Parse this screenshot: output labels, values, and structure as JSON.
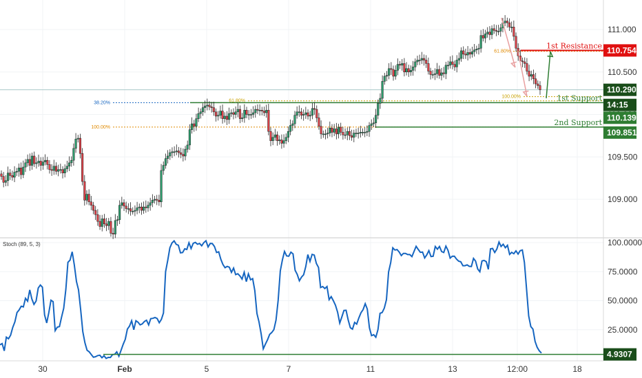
{
  "chart_data": [
    {
      "type": "candlestick",
      "price_axis": {
        "ticks": [
          "111.000",
          "110.500",
          "110.000",
          "109.500",
          "109.000"
        ],
        "ylim": [
          108.5,
          111.4
        ]
      },
      "time_axis": {
        "labels": [
          "30",
          "Feb",
          "5",
          "7",
          "11",
          "13",
          "12:00",
          "18"
        ]
      },
      "levels": {
        "first_resistance": {
          "label": "1st Resistance",
          "value": "110.754",
          "y": 110.754,
          "color": "#e01010"
        },
        "first_support": {
          "label": "1st Support",
          "value": "110.139",
          "y": 110.139,
          "color": "#2e7d32"
        },
        "second_support": {
          "label": "2nd Support",
          "value": "109.851",
          "y": 109.851,
          "color": "#2e7d32"
        },
        "current_price": {
          "value": "110.290",
          "y": 110.29,
          "color": "#1a4d1a"
        },
        "countdown": {
          "value": "14:15"
        }
      },
      "fibonacci": [
        {
          "label": "38.20%",
          "y": 110.139,
          "color": "#1565c0"
        },
        {
          "label": "100.00%",
          "y": 109.851,
          "color": "#e08a00"
        },
        {
          "label": "61.80%",
          "y": 110.16,
          "color": "#c9a100"
        },
        {
          "label": "61.80%",
          "y": 110.744,
          "color": "#e08a00"
        },
        {
          "label": "100.00%",
          "y": 110.21,
          "color": "#c9a100"
        }
      ],
      "candles_close": [
        109.27,
        109.2,
        109.22,
        109.31,
        109.28,
        109.26,
        109.32,
        109.33,
        109.37,
        109.29,
        109.38,
        109.43,
        109.47,
        109.4,
        109.51,
        109.42,
        109.43,
        109.45,
        109.4,
        109.44,
        109.46,
        109.41,
        109.35,
        109.34,
        109.39,
        109.33,
        109.35,
        109.35,
        109.31,
        109.36,
        109.39,
        109.43,
        109.46,
        109.6,
        109.71,
        109.72,
        109.54,
        109.21,
        108.99,
        109.06,
        108.97,
        108.93,
        108.87,
        108.82,
        108.74,
        108.68,
        108.77,
        108.71,
        108.69,
        108.74,
        108.6,
        108.59,
        108.75,
        108.76,
        108.93,
        108.96,
        108.92,
        108.89,
        108.89,
        108.86,
        108.86,
        108.87,
        108.9,
        108.91,
        108.87,
        108.91,
        108.9,
        108.93,
        108.96,
        108.99,
        109.0,
        108.99,
        108.97,
        109.34,
        109.4,
        109.48,
        109.51,
        109.55,
        109.56,
        109.56,
        109.57,
        109.55,
        109.53,
        109.51,
        109.59,
        109.64,
        109.82,
        109.89,
        109.86,
        109.95,
        110.01,
        110.03,
        110.08,
        110.1,
        110.11,
        110.09,
        110.08,
        110.03,
        109.98,
        109.99,
        110.04,
        109.95,
        109.98,
        109.94,
        110.01,
        110.02,
        110.0,
        110.03,
        110.06,
        109.95,
        109.96,
        110.05,
        110.0,
        110.0,
        110.0,
        110.02,
        110.06,
        110.05,
        110.05,
        110.04,
        110.02,
        110.05,
        109.8,
        109.69,
        109.73,
        109.76,
        109.69,
        109.7,
        109.66,
        109.69,
        109.73,
        109.8,
        109.87,
        109.89,
        109.99,
        110.03,
        110.03,
        109.99,
        110.0,
        110.02,
        109.98,
        109.99,
        110.07,
        110.06,
        109.96,
        109.86,
        109.77,
        109.77,
        109.77,
        109.78,
        109.84,
        109.79,
        109.83,
        109.77,
        109.85,
        109.79,
        109.76,
        109.76,
        109.8,
        109.75,
        109.73,
        109.78,
        109.78,
        109.78,
        109.79,
        109.79,
        109.79,
        109.8,
        109.87,
        109.89,
        109.9,
        109.99,
        110.13,
        110.19,
        110.39,
        110.45,
        110.46,
        110.54,
        110.53,
        110.45,
        110.52,
        110.59,
        110.58,
        110.6,
        110.5,
        110.54,
        110.5,
        110.52,
        110.56,
        110.62,
        110.64,
        110.64,
        110.66,
        110.64,
        110.6,
        110.51,
        110.47,
        110.47,
        110.48,
        110.53,
        110.46,
        110.49,
        110.48,
        110.58,
        110.58,
        110.62,
        110.59,
        110.56,
        110.64,
        110.66,
        110.75,
        110.71,
        110.7,
        110.73,
        110.71,
        110.74,
        110.76,
        110.77,
        110.78,
        110.93,
        110.9,
        110.95,
        110.97,
        110.94,
        111.01,
        110.99,
        110.98,
        110.98,
        111.02,
        111.08,
        111.1,
        111.08,
        111.03,
        111.03,
        110.92,
        110.78,
        110.69,
        110.63,
        110.62,
        110.6,
        110.51,
        110.45,
        110.47,
        110.42,
        110.36,
        110.34,
        110.29
      ],
      "arrows": [
        {
          "color": "#e8a0a0",
          "description": "declining move from top"
        },
        {
          "color": "#e8a0a0",
          "description": "projected decline"
        },
        {
          "color": "#2e7d32",
          "description": "projected bounce to 1st Resistance"
        }
      ]
    },
    {
      "type": "line",
      "title": "Stoch (89, 5, 3)",
      "ylim": [
        0,
        100
      ],
      "ticks": [
        "100.0000",
        "75.0000",
        "50.0000",
        "25.0000"
      ],
      "current": {
        "value": "4.9307",
        "y": 4.9307,
        "color": "#1a4d1a"
      },
      "series": [
        {
          "values": [
            12.0,
            13.1,
            6.8,
            18.6,
            17.2,
            20.3,
            27.0,
            31.8,
            39.8,
            42.0,
            45.2,
            44.6,
            52.1,
            49.6,
            59.3,
            51.6,
            46.8,
            49.7,
            60.9,
            63.5,
            61.6,
            37.8,
            30.8,
            39.8,
            50.4,
            49.2,
            24.2,
            27.2,
            27.7,
            35.9,
            43.5,
            59.8,
            83.0,
            84.9,
            92.1,
            80.7,
            66.5,
            59.3,
            42.3,
            23.3,
            13.7,
            7.3,
            6.0,
            3.6,
            1.3,
            1.8,
            2.7,
            3.1,
            0.9,
            2.6,
            0.3,
            1.2,
            1.1,
            3.6,
            3.8,
            6.0,
            2.2,
            7.2,
            12.4,
            16.8,
            25.5,
            28.1,
            32.7,
            25.0,
            32.7,
            31.4,
            29.2,
            30.0,
            32.1,
            33.2,
            29.1,
            34.5,
            34.8,
            35.5,
            34.7,
            31.0,
            33.9,
            39.4,
            75.0,
            84.7,
            95.5,
            99.7,
            101.5,
            98.5,
            97.7,
            91.2,
            91.4,
            94.7,
            94.1,
            99.9,
            94.9,
            99.4,
            100.2,
            98.6,
            99.3,
            97.3,
            100.0,
            101.6,
            96.3,
            99.3,
            99.2,
            96.7,
            91.5,
            92.1,
            85.6,
            81.2,
            78.4,
            79.5,
            78.8,
            74.4,
            78.1,
            72.5,
            73.2,
            71.3,
            68.6,
            74.5,
            66.4,
            73.1,
            68.0,
            69.0,
            58.7,
            39.0,
            31.7,
            21.5,
            8.5,
            12.6,
            16.4,
            21.0,
            22.6,
            25.1,
            33.3,
            50.3,
            75.6,
            85.2,
            92.4,
            88.6,
            88.3,
            91.8,
            90.3,
            76.2,
            72.6,
            67.1,
            70.3,
            72.3,
            79.4,
            89.7,
            83.8,
            89.9,
            89.3,
            82.0,
            78.6,
            61.3,
            62.2,
            60.4,
            62.2,
            50.9,
            53.5,
            50.0,
            46.1,
            40.1,
            30.7,
            36.1,
            41.6,
            41.8,
            33.3,
            26.7,
            25.5,
            31.3,
            29.8,
            35.1,
            39.6,
            42.3,
            47.4,
            42.8,
            26.6,
            19.9,
            20.7,
            18.5,
            25.1,
            39.1,
            39.8,
            43.6,
            50.8,
            74.7,
            82.8,
            95.5,
            93.6,
            94.0,
            91.9,
            88.8,
            90.7,
            90.7,
            89.7,
            89.7,
            87.9,
            92.5,
            96.8,
            94.1,
            91.6,
            91.9,
            86.8,
            89.5,
            93.1,
            88.0,
            88.2,
            96.6,
            94.3,
            96.7,
            92.3,
            91.5,
            97.0,
            93.3,
            86.6,
            88.2,
            88.3,
            85.8,
            84.0,
            83.5,
            80.1,
            80.1,
            80.8,
            79.6,
            79.4,
            86.4,
            84.1,
            77.3,
            74.9,
            84.2,
            84.7,
            83.6,
            77.0,
            94.6,
            95.0,
            91.5,
            94.5,
            100.5,
            96.7,
            98.6,
            95.6,
            97.7,
            89.8,
            91.6,
            90.4,
            92.9,
            90.1,
            93.1,
            93.6,
            82.9,
            60.1,
            36.9,
            27.7,
            25.5,
            14.9,
            9.9,
            6.8,
            4.9307
          ]
        }
      ],
      "time_axis": {
        "labels": [
          "30",
          "Feb",
          "5",
          "7",
          "11",
          "13",
          "12:00",
          "18"
        ]
      }
    }
  ]
}
